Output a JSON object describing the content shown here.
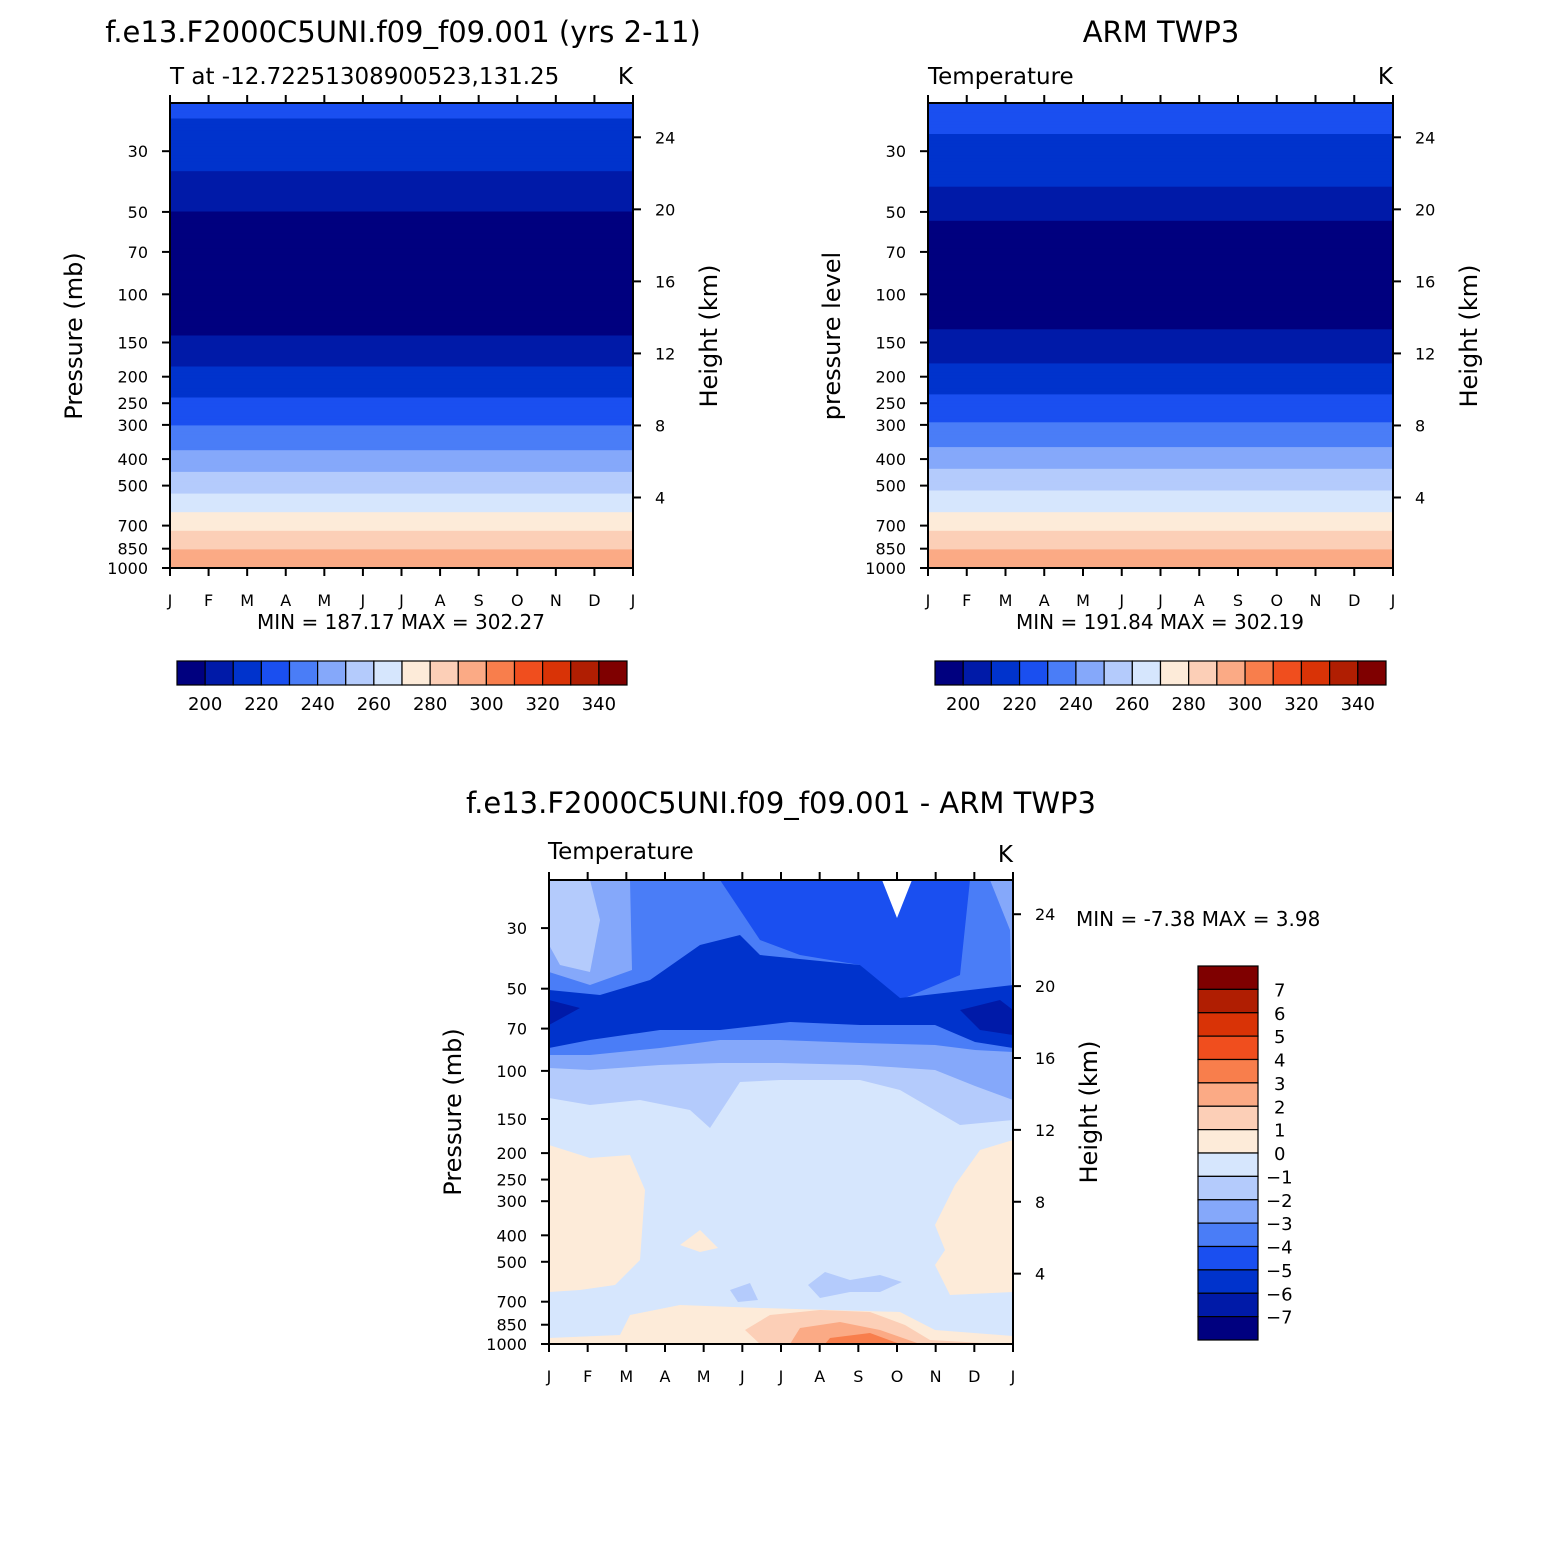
{
  "months": [
    "J",
    "F",
    "M",
    "A",
    "M",
    "J",
    "J",
    "A",
    "S",
    "O",
    "N",
    "D",
    "J"
  ],
  "pressure_ticks": [
    "30",
    "50",
    "70",
    "100",
    "150",
    "200",
    "250",
    "300",
    "400",
    "500",
    "700",
    "850",
    "1000"
  ],
  "height_ticks": [
    "24",
    "20",
    "16",
    "12",
    "8",
    "4"
  ],
  "palette": {
    "abs": [
      "#00007f",
      "#001aa8",
      "#0033cc",
      "#1a4ff0",
      "#4a7df7",
      "#85a8fa",
      "#b4cbfc",
      "#d6e6fd",
      "#fdebd9",
      "#fccfb7",
      "#fbaa85",
      "#f87e4c",
      "#f04e1e",
      "#d93306",
      "#b01e02",
      "#7f0000"
    ],
    "diff": [
      "#00007f",
      "#001aa8",
      "#0033cc",
      "#1a4ff0",
      "#4a7df7",
      "#85a8fa",
      "#b4cbfc",
      "#d6e6fd",
      "#fdebd9",
      "#fccfb7",
      "#fbaa85",
      "#f87e4c",
      "#f04e1e",
      "#d93306",
      "#b01e02",
      "#7f0000"
    ]
  },
  "chart_data": [
    {
      "type": "contour",
      "figure_title": "f.e13.F2000C5UNI.f09_f09.001 (yrs 2-11)",
      "subtitle_left": "T at -12.72251308900523,131.25",
      "subtitle_right": "K",
      "ylabel_left": "Pressure (mb)",
      "ylabel_right": "Height (km)",
      "stats": "MIN = 187.17 MAX = 302.27",
      "colorbar_labels": [
        "200",
        "220",
        "240",
        "260",
        "280",
        "300",
        "320",
        "340"
      ],
      "colorbar_levels": [
        190,
        200,
        210,
        220,
        230,
        240,
        250,
        260,
        270,
        280,
        290,
        300,
        310,
        320,
        330,
        340,
        350
      ],
      "profile_levels_hpa": [
        20,
        30,
        40,
        50,
        70,
        100,
        150,
        200,
        250,
        300,
        400,
        500,
        700,
        850,
        1000
      ],
      "profile_temps_k": [
        222,
        216,
        206,
        200,
        192,
        190,
        202,
        213,
        222,
        230,
        244,
        256,
        276,
        290,
        299
      ]
    },
    {
      "type": "contour",
      "figure_title": "ARM TWP3",
      "subtitle_left": "Temperature",
      "subtitle_right": "K",
      "ylabel_left": "pressure level",
      "ylabel_right": "Height (km)",
      "stats": "MIN = 191.84 MAX = 302.19",
      "colorbar_labels": [
        "200",
        "220",
        "240",
        "260",
        "280",
        "300",
        "320",
        "340"
      ],
      "colorbar_levels": [
        190,
        200,
        210,
        220,
        230,
        240,
        250,
        260,
        270,
        280,
        290,
        300,
        310,
        320,
        330,
        340,
        350
      ],
      "profile_levels_hpa": [
        20,
        30,
        40,
        50,
        70,
        100,
        150,
        200,
        250,
        300,
        400,
        500,
        700,
        850,
        1000
      ],
      "profile_temps_k": [
        224,
        218,
        210,
        202,
        194,
        191,
        203,
        214,
        223,
        231,
        245,
        257,
        277,
        290,
        300
      ]
    },
    {
      "type": "contour",
      "figure_title": "f.e13.F2000C5UNI.f09_f09.001 - ARM TWP3",
      "subtitle_left": "Temperature",
      "subtitle_right": "K",
      "ylabel_left": "Pressure (mb)",
      "ylabel_right": "Height (km)",
      "stats": "MIN = -7.38 MAX = 3.98",
      "colorbar_labels": [
        "7",
        "6",
        "5",
        "4",
        "3",
        "2",
        "1",
        "0",
        "-1",
        "-2",
        "-3",
        "-4",
        "-5",
        "-6",
        "-7"
      ],
      "colorbar_levels": [
        -8,
        -7,
        -6,
        -5,
        -4,
        -3,
        -2,
        -1,
        0,
        1,
        2,
        3,
        4,
        5,
        6,
        7,
        8
      ]
    }
  ]
}
